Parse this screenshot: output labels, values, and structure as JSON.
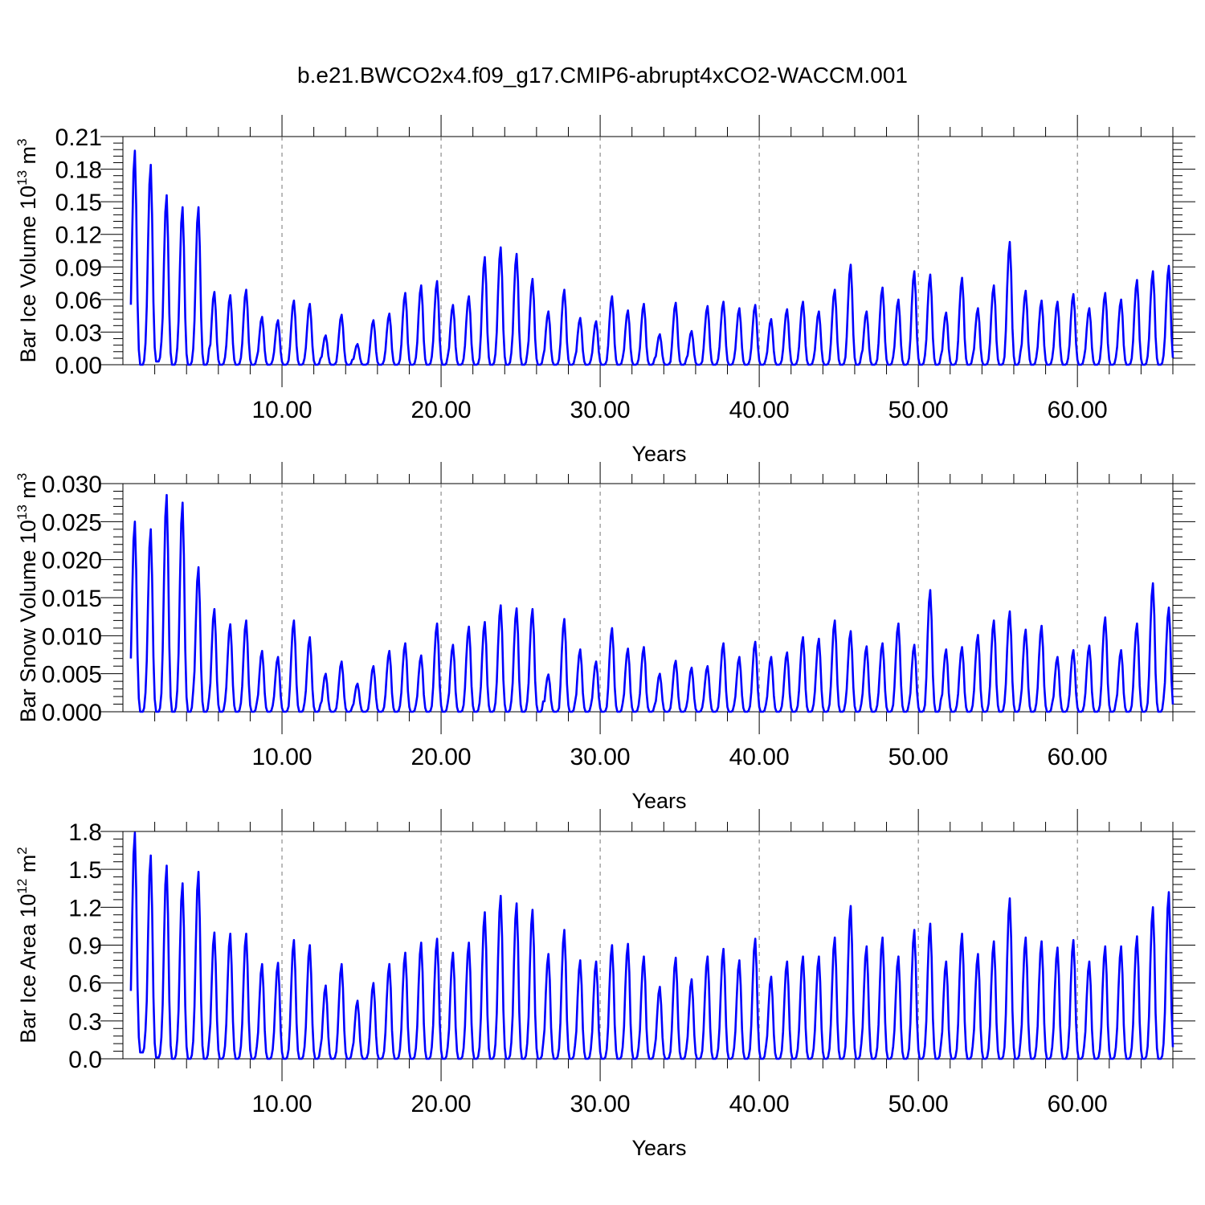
{
  "title": "b.e21.BWCO2x4.f09_g17.CMIP6-abrupt4xCO2-WACCM.001",
  "line_color": "#0000ff",
  "chart_data": [
    {
      "type": "line",
      "xlabel": "Years",
      "ylabel_main": "Bar Ice Volume 10",
      "ylabel_exp": "13",
      "ylabel_unit": " m",
      "ylabel_unit_exp": "3",
      "xlim": [
        0,
        66
      ],
      "ylim": [
        0,
        0.21
      ],
      "xticks": [
        10,
        20,
        30,
        40,
        50,
        60
      ],
      "xtick_labels": [
        "10.00",
        "20.00",
        "30.00",
        "40.00",
        "50.00",
        "60.00"
      ],
      "yticks": [
        0,
        0.03,
        0.06,
        0.09,
        0.12,
        0.15,
        0.18,
        0.21
      ],
      "ytick_labels": [
        "0.00",
        "0.03",
        "0.06",
        "0.09",
        "0.12",
        "0.15",
        "0.18",
        "0.21"
      ],
      "grid": "vertical dashed",
      "series": [
        {
          "peaks": [
            0.197,
            0.184,
            0.156,
            0.145,
            0.145,
            0.067,
            0.064,
            0.069,
            0.044,
            0.041,
            0.059,
            0.056,
            0.027,
            0.046,
            0.019,
            0.041,
            0.047,
            0.066,
            0.073,
            0.077,
            0.055,
            0.063,
            0.099,
            0.108,
            0.102,
            0.079,
            0.049,
            0.069,
            0.043,
            0.04,
            0.063,
            0.05,
            0.056,
            0.028,
            0.057,
            0.031,
            0.054,
            0.058,
            0.052,
            0.055,
            0.042,
            0.051,
            0.058,
            0.049,
            0.069,
            0.092,
            0.049,
            0.071,
            0.06,
            0.086,
            0.083,
            0.048,
            0.08,
            0.052,
            0.073,
            0.113,
            0.068,
            0.059,
            0.058,
            0.065,
            0.052,
            0.066,
            0.06,
            0.078,
            0.086,
            0.091
          ],
          "minima": [
            0.0,
            0.003,
            0.0,
            0.0,
            0.0,
            0.0,
            0.0,
            0.0,
            0.0,
            0.0,
            0.0,
            0.0,
            0.0,
            0.0,
            0.0,
            0.0,
            0.0,
            0.0,
            0.0,
            0.0,
            0.0,
            0.0,
            0.0,
            0.0,
            0.0,
            0.0,
            0.0,
            0.0,
            0.0,
            0.0,
            0.0,
            0.0,
            0.0,
            0.0,
            0.0,
            0.0,
            0.0,
            0.0,
            0.0,
            0.0,
            0.0,
            0.0,
            0.0,
            0.0,
            0.0,
            0.0,
            0.0,
            0.0,
            0.0,
            0.0,
            0.0,
            0.0,
            0.0,
            0.0,
            0.0,
            0.0,
            0.0,
            0.0,
            0.0,
            0.0,
            0.0,
            0.0,
            0.0,
            0.0,
            0.0,
            0.0
          ]
        }
      ]
    },
    {
      "type": "line",
      "xlabel": "Years",
      "ylabel_main": "Bar Snow Volume 10",
      "ylabel_exp": "13",
      "ylabel_unit": " m",
      "ylabel_unit_exp": "3",
      "xlim": [
        0,
        66
      ],
      "ylim": [
        0,
        0.03
      ],
      "xticks": [
        10,
        20,
        30,
        40,
        50,
        60
      ],
      "xtick_labels": [
        "10.00",
        "20.00",
        "30.00",
        "40.00",
        "50.00",
        "60.00"
      ],
      "yticks": [
        0,
        0.005,
        0.01,
        0.015,
        0.02,
        0.025,
        0.03
      ],
      "ytick_labels": [
        "0.000",
        "0.005",
        "0.010",
        "0.015",
        "0.020",
        "0.025",
        "0.030"
      ],
      "grid": "vertical dashed",
      "series": [
        {
          "peaks": [
            0.025,
            0.024,
            0.0285,
            0.0275,
            0.019,
            0.0135,
            0.0115,
            0.012,
            0.008,
            0.0072,
            0.012,
            0.0098,
            0.005,
            0.0066,
            0.0037,
            0.006,
            0.008,
            0.009,
            0.0074,
            0.0116,
            0.0088,
            0.0112,
            0.0118,
            0.014,
            0.0136,
            0.0135,
            0.0049,
            0.0122,
            0.0082,
            0.0066,
            0.011,
            0.0083,
            0.0085,
            0.005,
            0.0067,
            0.0058,
            0.006,
            0.009,
            0.0072,
            0.0092,
            0.0072,
            0.0078,
            0.0098,
            0.0096,
            0.012,
            0.0106,
            0.0086,
            0.009,
            0.0116,
            0.0088,
            0.016,
            0.0082,
            0.0085,
            0.0101,
            0.012,
            0.0132,
            0.0108,
            0.0113,
            0.0072,
            0.0081,
            0.0087,
            0.0124,
            0.0081,
            0.0116,
            0.0169,
            0.0137
          ],
          "minima": [
            0.0,
            0.0,
            0.0,
            0.0,
            0.0,
            0.0,
            0.0,
            0.0,
            0.0,
            0.0,
            0.0,
            0.0,
            0.0,
            0.0,
            0.0,
            0.0,
            0.0,
            0.0,
            0.0,
            0.0,
            0.0,
            0.0,
            0.0,
            0.0,
            0.0,
            0.0,
            0.0,
            0.0,
            0.0,
            0.0,
            0.0,
            0.0,
            0.0,
            0.0,
            0.0,
            0.0,
            0.0,
            0.0,
            0.0,
            0.0,
            0.0,
            0.0,
            0.0,
            0.0,
            0.0,
            0.0,
            0.0,
            0.0,
            0.0,
            0.0,
            0.0,
            0.0,
            0.0,
            0.0,
            0.0,
            0.0,
            0.0,
            0.0,
            0.0,
            0.0,
            0.0,
            0.0,
            0.0,
            0.0,
            0.0,
            0.0
          ]
        }
      ]
    },
    {
      "type": "line",
      "xlabel": "Years",
      "ylabel_main": "Bar Ice Area 10",
      "ylabel_exp": "12",
      "ylabel_unit": " m",
      "ylabel_unit_exp": "2",
      "xlim": [
        0,
        66
      ],
      "ylim": [
        0,
        1.8
      ],
      "xticks": [
        10,
        20,
        30,
        40,
        50,
        60
      ],
      "xtick_labels": [
        "10.00",
        "20.00",
        "30.00",
        "40.00",
        "50.00",
        "60.00"
      ],
      "yticks": [
        0,
        0.3,
        0.6,
        0.9,
        1.2,
        1.5,
        1.8
      ],
      "ytick_labels": [
        "0.0",
        "0.3",
        "0.6",
        "0.9",
        "1.2",
        "1.5",
        "1.8"
      ],
      "grid": "vertical dashed",
      "series": [
        {
          "peaks": [
            1.79,
            1.61,
            1.53,
            1.39,
            1.48,
            1.0,
            0.99,
            0.99,
            0.75,
            0.76,
            0.94,
            0.9,
            0.58,
            0.75,
            0.46,
            0.6,
            0.75,
            0.84,
            0.92,
            0.95,
            0.84,
            0.92,
            1.16,
            1.29,
            1.23,
            1.18,
            0.83,
            1.02,
            0.78,
            0.77,
            0.9,
            0.91,
            0.81,
            0.57,
            0.8,
            0.63,
            0.81,
            0.87,
            0.78,
            0.95,
            0.65,
            0.77,
            0.81,
            0.81,
            0.96,
            1.21,
            0.89,
            0.96,
            0.81,
            1.02,
            1.07,
            0.77,
            0.99,
            0.83,
            0.93,
            1.27,
            0.96,
            0.93,
            0.88,
            0.94,
            0.77,
            0.89,
            0.89,
            0.97,
            1.2,
            1.32
          ],
          "minima": [
            0.05,
            0.01,
            0.0,
            0.0,
            0.0,
            0.0,
            0.0,
            0.0,
            0.0,
            0.0,
            0.0,
            0.0,
            0.0,
            0.0,
            0.0,
            0.0,
            0.0,
            0.0,
            0.0,
            0.0,
            0.0,
            0.0,
            0.0,
            0.0,
            0.0,
            0.0,
            0.0,
            0.0,
            0.0,
            0.0,
            0.0,
            0.0,
            0.0,
            0.0,
            0.0,
            0.0,
            0.0,
            0.0,
            0.0,
            0.0,
            0.0,
            0.0,
            0.0,
            0.0,
            0.0,
            0.0,
            0.0,
            0.0,
            0.0,
            0.0,
            0.0,
            0.0,
            0.0,
            0.0,
            0.0,
            0.0,
            0.0,
            0.0,
            0.0,
            0.0,
            0.0,
            0.0,
            0.0,
            0.0,
            0.0,
            0.0
          ]
        }
      ]
    }
  ]
}
